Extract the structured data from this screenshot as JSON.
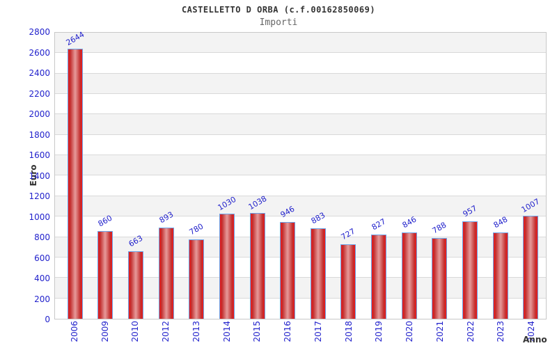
{
  "title": "CASTELLETTO D ORBA (c.f.00162850069)",
  "subtitle": "Importi",
  "chart_data": {
    "type": "bar",
    "title": "CASTELLETTO D ORBA (c.f.00162850069)",
    "subtitle": "Importi",
    "categories": [
      "2006",
      "2009",
      "2010",
      "2012",
      "2013",
      "2014",
      "2015",
      "2016",
      "2017",
      "2018",
      "2019",
      "2020",
      "2021",
      "2022",
      "2023",
      "2024"
    ],
    "values": [
      2644,
      860,
      663,
      893,
      780,
      1030,
      1038,
      946,
      883,
      727,
      827,
      846,
      788,
      957,
      848,
      1007
    ],
    "xlabel": "Anno",
    "ylabel": "Euro",
    "ylim": [
      0,
      2800
    ],
    "ytick_step": 200,
    "grid": true,
    "legend": false,
    "band_colors": [
      "#f3f3f3",
      "#ffffff"
    ],
    "colors": {
      "bar_edge": "#ee1a1a",
      "bar_mid": "#e59595",
      "bar_border": "#6aa3e8",
      "tick_label": "#2222cc",
      "grid_line": "#d9d9d9",
      "plot_border": "#c8c8c8",
      "axis_title": "#333333",
      "subtitle_text": "#666666"
    }
  }
}
